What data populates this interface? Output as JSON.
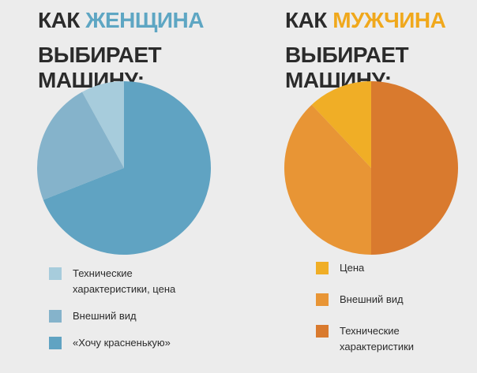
{
  "left": {
    "title_prefix": "КАК ",
    "title_accent": "ЖЕНЩИНА",
    "title_line2": "ВЫБИРАЕТ МАШИНУ:",
    "accent_color": "#5ea6c3"
  },
  "right": {
    "title_prefix": "КАК ",
    "title_accent": "МУЖЧИНА",
    "title_line2": "ВЫБИРАЕТ МАШИНУ:",
    "accent_color": "#f0a81c"
  },
  "title_color": "#2b2b2b",
  "background_color": "#ececec",
  "chart_data": [
    {
      "type": "pie",
      "title": "КАК ЖЕНЩИНА ВЫБИРАЕТ МАШИНУ:",
      "categories": [
        "Технические характеристики, цена",
        "Внешний вид",
        "«Хочу красненькую»"
      ],
      "values": [
        8,
        23,
        69
      ],
      "unit": "%",
      "colors": [
        "#a7ccdc",
        "#85b3cb",
        "#60a3c2"
      ],
      "legend": [
        "Технические\nхарактеристики, цена",
        "Внешний вид",
        "«Хочу красненькую»"
      ],
      "legend_position": "bottom"
    },
    {
      "type": "pie",
      "title": "КАК МУЖЧИНА ВЫБИРАЕТ МАШИНУ:",
      "categories": [
        "Цена",
        "Внешний вид",
        "Технические характеристики"
      ],
      "values": [
        12,
        38,
        50
      ],
      "unit": "%",
      "colors": [
        "#f0ae26",
        "#e89535",
        "#d97a2e"
      ],
      "legend": [
        "Цена",
        "Внешний вид",
        "Технические\nхарактеристики"
      ],
      "legend_position": "bottom"
    }
  ]
}
